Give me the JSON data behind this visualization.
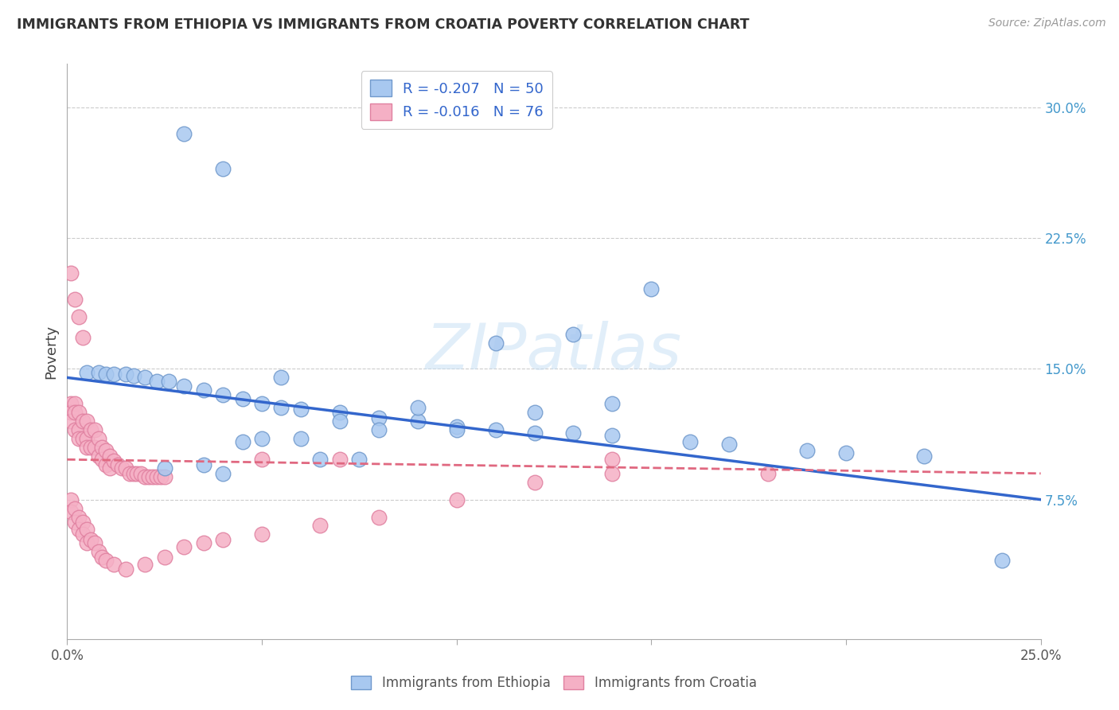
{
  "title": "IMMIGRANTS FROM ETHIOPIA VS IMMIGRANTS FROM CROATIA POVERTY CORRELATION CHART",
  "source": "Source: ZipAtlas.com",
  "ylabel": "Poverty",
  "watermark": "ZIPatlas",
  "xlim": [
    0.0,
    0.25
  ],
  "ylim": [
    -0.005,
    0.325
  ],
  "xticks": [
    0.0,
    0.05,
    0.1,
    0.15,
    0.2,
    0.25
  ],
  "xtick_labels": [
    "0.0%",
    "",
    "",
    "",
    "",
    "25.0%"
  ],
  "ytick_labels_right": [
    "7.5%",
    "15.0%",
    "22.5%",
    "30.0%"
  ],
  "yticks_right": [
    0.075,
    0.15,
    0.225,
    0.3
  ],
  "ethiopia_color": "#a8c8f0",
  "croatia_color": "#f5b0c5",
  "ethiopia_edge": "#7099cc",
  "croatia_edge": "#e080a0",
  "line_ethiopia_color": "#3366cc",
  "line_croatia_color": "#e06880",
  "legend_R_ethiopia": "-0.207",
  "legend_N_ethiopia": "50",
  "legend_R_croatia": "-0.016",
  "legend_N_croatia": "76",
  "ethiopia_line_start_y": 0.145,
  "ethiopia_line_end_y": 0.075,
  "croatia_line_start_y": 0.098,
  "croatia_line_end_y": 0.09,
  "ethiopia_x": [
    0.03,
    0.04,
    0.005,
    0.008,
    0.01,
    0.012,
    0.015,
    0.017,
    0.02,
    0.023,
    0.026,
    0.03,
    0.035,
    0.04,
    0.045,
    0.05,
    0.055,
    0.06,
    0.07,
    0.08,
    0.09,
    0.1,
    0.11,
    0.12,
    0.13,
    0.14,
    0.16,
    0.17,
    0.19,
    0.2,
    0.22,
    0.14,
    0.12,
    0.1,
    0.08,
    0.06,
    0.05,
    0.045,
    0.035,
    0.025,
    0.15,
    0.13,
    0.11,
    0.09,
    0.07,
    0.055,
    0.04,
    0.065,
    0.075,
    0.24
  ],
  "ethiopia_y": [
    0.285,
    0.265,
    0.148,
    0.148,
    0.147,
    0.147,
    0.147,
    0.146,
    0.145,
    0.143,
    0.143,
    0.14,
    0.138,
    0.135,
    0.133,
    0.13,
    0.128,
    0.127,
    0.125,
    0.122,
    0.12,
    0.117,
    0.115,
    0.113,
    0.113,
    0.112,
    0.108,
    0.107,
    0.103,
    0.102,
    0.1,
    0.13,
    0.125,
    0.115,
    0.115,
    0.11,
    0.11,
    0.108,
    0.095,
    0.093,
    0.196,
    0.17,
    0.165,
    0.128,
    0.12,
    0.145,
    0.09,
    0.098,
    0.098,
    0.04
  ],
  "croatia_x": [
    0.001,
    0.001,
    0.001,
    0.002,
    0.002,
    0.002,
    0.003,
    0.003,
    0.003,
    0.004,
    0.004,
    0.005,
    0.005,
    0.005,
    0.006,
    0.006,
    0.007,
    0.007,
    0.008,
    0.008,
    0.009,
    0.009,
    0.01,
    0.01,
    0.011,
    0.011,
    0.012,
    0.013,
    0.014,
    0.015,
    0.016,
    0.017,
    0.018,
    0.019,
    0.02,
    0.021,
    0.022,
    0.023,
    0.024,
    0.025,
    0.001,
    0.001,
    0.002,
    0.002,
    0.003,
    0.003,
    0.004,
    0.004,
    0.005,
    0.005,
    0.006,
    0.007,
    0.008,
    0.009,
    0.01,
    0.012,
    0.015,
    0.02,
    0.025,
    0.03,
    0.035,
    0.04,
    0.05,
    0.065,
    0.08,
    0.1,
    0.12,
    0.14,
    0.18,
    0.05,
    0.07,
    0.14,
    0.001,
    0.002,
    0.003,
    0.004
  ],
  "croatia_y": [
    0.13,
    0.125,
    0.12,
    0.13,
    0.125,
    0.115,
    0.125,
    0.115,
    0.11,
    0.12,
    0.11,
    0.12,
    0.11,
    0.105,
    0.115,
    0.105,
    0.115,
    0.105,
    0.11,
    0.1,
    0.105,
    0.098,
    0.103,
    0.095,
    0.1,
    0.093,
    0.097,
    0.095,
    0.093,
    0.093,
    0.09,
    0.09,
    0.09,
    0.09,
    0.088,
    0.088,
    0.088,
    0.088,
    0.088,
    0.088,
    0.075,
    0.068,
    0.07,
    0.062,
    0.065,
    0.058,
    0.062,
    0.055,
    0.058,
    0.05,
    0.052,
    0.05,
    0.045,
    0.042,
    0.04,
    0.038,
    0.035,
    0.038,
    0.042,
    0.048,
    0.05,
    0.052,
    0.055,
    0.06,
    0.065,
    0.075,
    0.085,
    0.09,
    0.09,
    0.098,
    0.098,
    0.098,
    0.205,
    0.19,
    0.18,
    0.168
  ]
}
